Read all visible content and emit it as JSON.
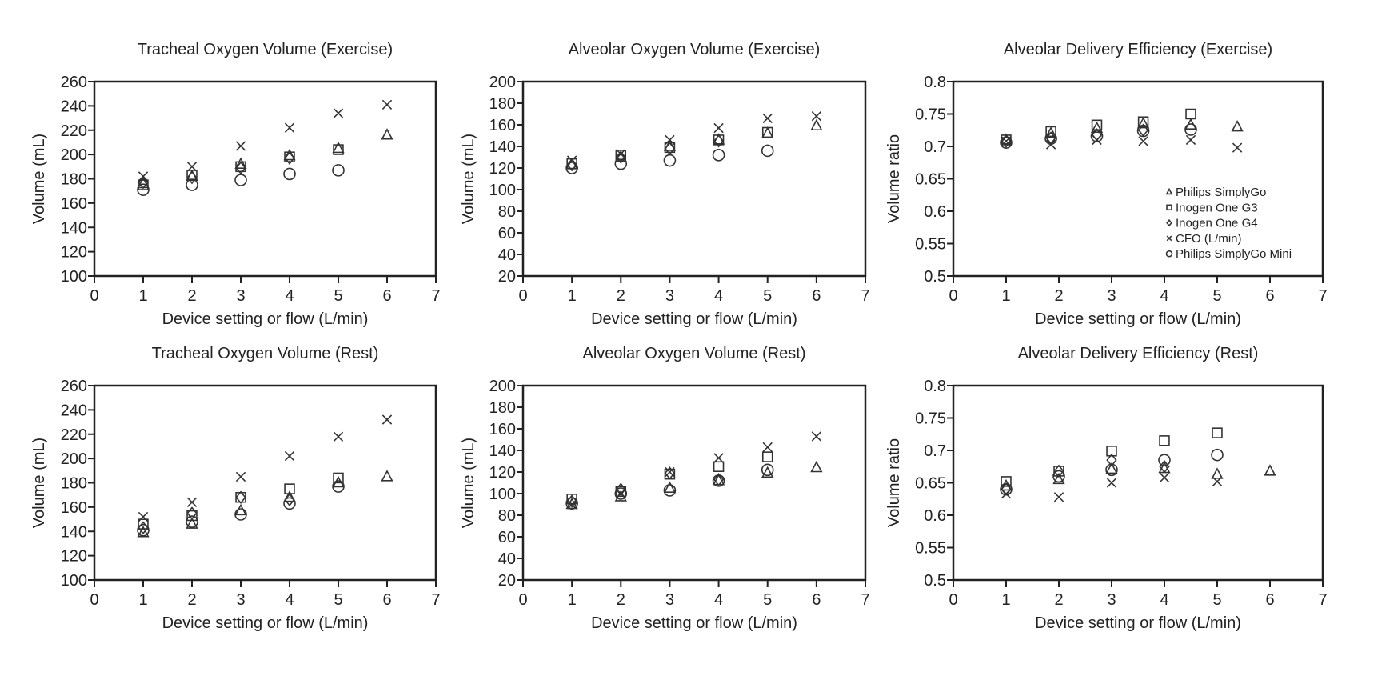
{
  "chart_data": [
    {
      "type": "scatter",
      "title": "Tracheal Oxygen Volume (Exercise)",
      "xlabel": "Device setting or flow (L/min)",
      "ylabel": "Volume (mL)",
      "xlim": [
        0,
        7
      ],
      "ylim": [
        100,
        260
      ],
      "xticks": [
        0,
        1,
        2,
        3,
        4,
        5,
        6,
        7
      ],
      "yticks": [
        100,
        120,
        140,
        160,
        180,
        200,
        220,
        240,
        260
      ],
      "grid": false,
      "series": [
        {
          "name": "Philips SimplyGo",
          "marker": "triangle",
          "x": [
            1,
            2,
            3,
            4,
            5,
            6
          ],
          "y": [
            176,
            182,
            192,
            199,
            205,
            216
          ]
        },
        {
          "name": "Inogen One G3",
          "marker": "square",
          "x": [
            1,
            2,
            3,
            4,
            5
          ],
          "y": [
            175,
            183,
            190,
            198,
            204
          ]
        },
        {
          "name": "Inogen One G4",
          "marker": "diamond",
          "x": [
            1,
            2,
            3,
            4
          ],
          "y": [
            177,
            181,
            189,
            197
          ]
        },
        {
          "name": "CFO (L/min)",
          "marker": "cross",
          "x": [
            1,
            2,
            3,
            4,
            5,
            6
          ],
          "y": [
            182,
            190,
            207,
            222,
            234,
            241
          ]
        },
        {
          "name": "Philips SimplyGo Mini",
          "marker": "circle",
          "x": [
            1,
            2,
            3,
            4,
            5
          ],
          "y": [
            171,
            175,
            179,
            184,
            187
          ]
        }
      ]
    },
    {
      "type": "scatter",
      "title": "Alveolar Oxygen Volume (Exercise)",
      "xlabel": "Device setting or flow (L/min)",
      "ylabel": "Volume (mL)",
      "xlim": [
        0,
        7
      ],
      "ylim": [
        20,
        200
      ],
      "xticks": [
        0,
        1,
        2,
        3,
        4,
        5,
        6,
        7
      ],
      "yticks": [
        20,
        40,
        60,
        80,
        100,
        120,
        140,
        160,
        180,
        200
      ],
      "grid": false,
      "series": [
        {
          "name": "Philips SimplyGo",
          "marker": "triangle",
          "x": [
            1,
            2,
            3,
            4,
            5,
            6
          ],
          "y": [
            123,
            130,
            140,
            146,
            152,
            159
          ]
        },
        {
          "name": "Inogen One G3",
          "marker": "square",
          "x": [
            1,
            2,
            3,
            4,
            5
          ],
          "y": [
            124,
            132,
            139,
            146,
            153
          ]
        },
        {
          "name": "Inogen One G4",
          "marker": "diamond",
          "x": [
            1,
            2,
            3,
            4
          ],
          "y": [
            123,
            130,
            138,
            145
          ]
        },
        {
          "name": "CFO (L/min)",
          "marker": "cross",
          "x": [
            1,
            2,
            3,
            4,
            5,
            6
          ],
          "y": [
            127,
            133,
            146,
            157,
            166,
            168
          ]
        },
        {
          "name": "Philips SimplyGo Mini",
          "marker": "circle",
          "x": [
            1,
            2,
            3,
            4,
            5
          ],
          "y": [
            120,
            124,
            127,
            132,
            136
          ]
        }
      ]
    },
    {
      "type": "scatter",
      "title": "Alveolar  Delivery Efficiency (Exercise)",
      "xlabel": "Device setting or flow (L/min)",
      "ylabel": "Volume ratio",
      "xlim": [
        0,
        7
      ],
      "ylim": [
        0.5,
        0.8
      ],
      "xticks": [
        0,
        1,
        2,
        3,
        4,
        5,
        6,
        7
      ],
      "yticks": [
        0.5,
        0.55,
        0.6,
        0.65,
        0.7,
        0.75,
        0.8
      ],
      "grid": false,
      "legend": {
        "placement": "lower-right",
        "entries": [
          {
            "label": "Philips SimplyGo",
            "marker": "triangle"
          },
          {
            "label": "Inogen One G3",
            "marker": "square"
          },
          {
            "label": "Inogen One G4",
            "marker": "diamond"
          },
          {
            "label": "CFO (L/min)",
            "marker": "cross"
          },
          {
            "label": "Philips SimplyGo Mini",
            "marker": "circle"
          }
        ]
      },
      "series": [
        {
          "name": "Philips SimplyGo",
          "marker": "triangle",
          "x": [
            1,
            1.85,
            2.72,
            3.6,
            4.5,
            5.38
          ],
          "y": [
            0.71,
            0.72,
            0.728,
            0.735,
            0.733,
            0.73
          ]
        },
        {
          "name": "Inogen One G3",
          "marker": "square",
          "x": [
            1,
            1.85,
            2.72,
            3.6,
            4.5
          ],
          "y": [
            0.71,
            0.723,
            0.733,
            0.738,
            0.75
          ]
        },
        {
          "name": "Inogen One G4",
          "marker": "diamond",
          "x": [
            1,
            1.85,
            2.72,
            3.6
          ],
          "y": [
            0.708,
            0.713,
            0.718,
            0.725
          ]
        },
        {
          "name": "CFO (L/min)",
          "marker": "cross",
          "x": [
            1,
            1.85,
            2.72,
            3.6,
            4.5,
            5.38
          ],
          "y": [
            0.708,
            0.703,
            0.71,
            0.708,
            0.71,
            0.698
          ]
        },
        {
          "name": "Philips SimplyGo Mini",
          "marker": "circle",
          "x": [
            1,
            1.85,
            2.72,
            3.6,
            4.5
          ],
          "y": [
            0.706,
            0.712,
            0.716,
            0.724,
            0.726
          ]
        }
      ]
    },
    {
      "type": "scatter",
      "title": "Tracheal Oxygen Volume (Rest)",
      "xlabel": "Device setting or flow (L/min)",
      "ylabel": "Volume (mL)",
      "xlim": [
        0,
        7
      ],
      "ylim": [
        100,
        260
      ],
      "xticks": [
        0,
        1,
        2,
        3,
        4,
        5,
        6,
        7
      ],
      "yticks": [
        100,
        120,
        140,
        160,
        180,
        200,
        220,
        240,
        260
      ],
      "grid": false,
      "series": [
        {
          "name": "Philips SimplyGo",
          "marker": "triangle",
          "x": [
            1,
            2,
            3,
            4,
            5,
            6
          ],
          "y": [
            139,
            146,
            157,
            168,
            180,
            185
          ]
        },
        {
          "name": "Inogen One G3",
          "marker": "square",
          "x": [
            1,
            2,
            3,
            4,
            5
          ],
          "y": [
            146,
            153,
            168,
            175,
            184
          ]
        },
        {
          "name": "Inogen One G4",
          "marker": "diamond",
          "x": [
            1,
            2,
            3,
            4
          ],
          "y": [
            143,
            155,
            168,
            166
          ]
        },
        {
          "name": "CFO (L/min)",
          "marker": "cross",
          "x": [
            1,
            2,
            3,
            4,
            5,
            6
          ],
          "y": [
            152,
            164,
            185,
            202,
            218,
            232
          ]
        },
        {
          "name": "Philips SimplyGo Mini",
          "marker": "circle",
          "x": [
            1,
            2,
            3,
            4,
            5
          ],
          "y": [
            141,
            148,
            154,
            163,
            177
          ]
        }
      ]
    },
    {
      "type": "scatter",
      "title": "Alveolar Oxygen Volume (Rest)",
      "xlabel": "Device setting or flow (L/min)",
      "ylabel": "Volume (mL)",
      "xlim": [
        0,
        7
      ],
      "ylim": [
        20,
        200
      ],
      "xticks": [
        0,
        1,
        2,
        3,
        4,
        5,
        6,
        7
      ],
      "yticks": [
        20,
        40,
        60,
        80,
        100,
        120,
        140,
        160,
        180,
        200
      ],
      "grid": false,
      "series": [
        {
          "name": "Philips SimplyGo",
          "marker": "triangle",
          "x": [
            1,
            2,
            3,
            4,
            5,
            6
          ],
          "y": [
            90,
            97,
            105,
            112,
            119,
            124
          ]
        },
        {
          "name": "Inogen One G3",
          "marker": "square",
          "x": [
            1,
            2,
            3,
            4,
            5
          ],
          "y": [
            95,
            102,
            118,
            125,
            134
          ]
        },
        {
          "name": "Inogen One G4",
          "marker": "diamond",
          "x": [
            1,
            2,
            3,
            4
          ],
          "y": [
            93,
            104,
            119,
            113
          ]
        },
        {
          "name": "CFO (L/min)",
          "marker": "cross",
          "x": [
            1,
            2,
            3,
            4,
            5,
            6
          ],
          "y": [
            90,
            100,
            120,
            133,
            143,
            153
          ]
        },
        {
          "name": "Philips SimplyGo Mini",
          "marker": "circle",
          "x": [
            1,
            2,
            3,
            4,
            5
          ],
          "y": [
            91,
            100,
            103,
            112,
            122
          ]
        }
      ]
    },
    {
      "type": "scatter",
      "title": "Alveolar  Delivery Efficiency (Rest)",
      "xlabel": "Device setting or flow (L/min)",
      "ylabel": "Volume ratio",
      "xlim": [
        0,
        7
      ],
      "ylim": [
        0.5,
        0.8
      ],
      "xticks": [
        0,
        1,
        2,
        3,
        4,
        5,
        6,
        7
      ],
      "yticks": [
        0.5,
        0.55,
        0.6,
        0.65,
        0.7,
        0.75,
        0.8
      ],
      "grid": false,
      "series": [
        {
          "name": "Philips SimplyGo",
          "marker": "triangle",
          "x": [
            1,
            2,
            3,
            4,
            5,
            6
          ],
          "y": [
            0.645,
            0.655,
            0.671,
            0.672,
            0.663,
            0.668
          ]
        },
        {
          "name": "Inogen One G3",
          "marker": "square",
          "x": [
            1,
            2,
            3,
            4,
            5
          ],
          "y": [
            0.652,
            0.668,
            0.699,
            0.715,
            0.727
          ]
        },
        {
          "name": "Inogen One G4",
          "marker": "diamond",
          "x": [
            1,
            2,
            3,
            4
          ],
          "y": [
            0.64,
            0.668,
            0.685,
            0.675
          ]
        },
        {
          "name": "CFO (L/min)",
          "marker": "cross",
          "x": [
            1,
            2,
            3,
            4,
            5
          ],
          "y": [
            0.633,
            0.628,
            0.65,
            0.658,
            0.652
          ]
        },
        {
          "name": "Philips SimplyGo Mini",
          "marker": "circle",
          "x": [
            1,
            2,
            3,
            4,
            5
          ],
          "y": [
            0.64,
            0.66,
            0.67,
            0.685,
            0.693
          ]
        }
      ]
    }
  ]
}
